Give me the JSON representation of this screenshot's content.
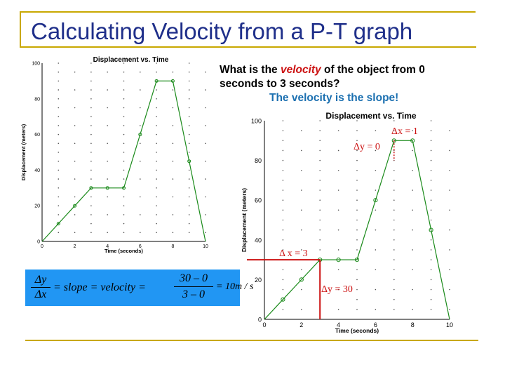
{
  "slide": {
    "title": "Calculating Velocity from a P-T graph",
    "question_prefix": "What is the ",
    "question_highlight": "velocity",
    "question_suffix": " of the object from 0 seconds to 3 seconds?",
    "answer": "The velocity is the slope!",
    "formula": {
      "lhs_num": "Δy",
      "lhs_den": "Δx",
      "middle": "= slope = velocity =",
      "num": "30 – 0",
      "den": "3 – 0",
      "result": "= 10m / s"
    }
  },
  "colors": {
    "title": "#1f2f8a",
    "frame": "#c8a800",
    "line": "#1a8a1a",
    "annotation": "#cc1111",
    "formula_bg": "#2196f3"
  },
  "chart_data": [
    {
      "type": "line",
      "title": "Displacement vs. Time",
      "xlabel": "Time (seconds)",
      "ylabel": "Displacement (meters)",
      "xlim": [
        0,
        10
      ],
      "ylim": [
        0,
        100
      ],
      "x_ticks": [
        "0",
        "2",
        "4",
        "6",
        "8",
        "10"
      ],
      "y_ticks": [
        "0",
        "20",
        "40",
        "60",
        "80",
        "100"
      ],
      "grid": true,
      "series": [
        {
          "x": [
            0,
            1,
            2,
            3,
            4,
            5,
            6,
            7,
            8,
            9,
            10
          ],
          "y": [
            0,
            10,
            20,
            30,
            30,
            30,
            60,
            90,
            90,
            45,
            0
          ]
        }
      ]
    },
    {
      "type": "line",
      "title": "Displacement vs. Time",
      "xlabel": "Time (seconds)",
      "ylabel": "Displacement (meters)",
      "xlim": [
        0,
        10
      ],
      "ylim": [
        0,
        100
      ],
      "x_ticks": [
        "0",
        "2",
        "4",
        "6",
        "8",
        "10"
      ],
      "y_ticks": [
        "0",
        "20",
        "40",
        "60",
        "80",
        "100"
      ],
      "grid": true,
      "series": [
        {
          "x": [
            0,
            1,
            2,
            3,
            4,
            5,
            6,
            7,
            8,
            9,
            10
          ],
          "y": [
            0,
            10,
            20,
            30,
            30,
            30,
            60,
            90,
            90,
            45,
            0
          ]
        }
      ],
      "annotations": [
        "Δx = 1",
        "Δy = 0",
        "Δ x = 3",
        "Δy = 30"
      ]
    }
  ]
}
